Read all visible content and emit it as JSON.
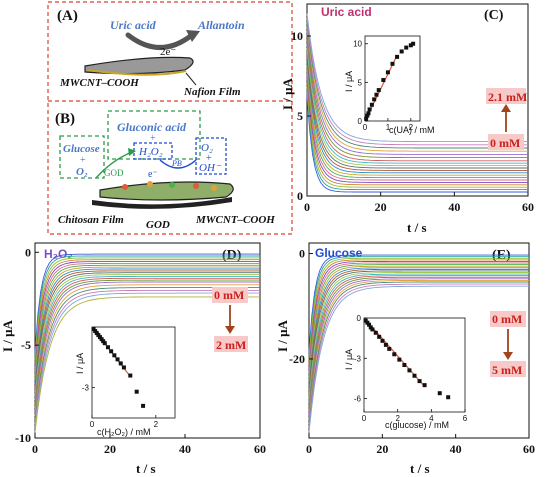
{
  "schematic": {
    "panel_a": {
      "label": "(A)",
      "uric_acid": "Uric acid",
      "allantoin": "Allantoin",
      "electrons": "2e⁻",
      "electrode": "MWCNT–COOH",
      "film": "Nafion Film"
    },
    "panel_b": {
      "label": "(B)",
      "gluconic_acid": "Gluconic acid",
      "plus": "+",
      "h2o2": "H₂O₂",
      "glucose": "Glucose",
      "o2": "O₂",
      "god_arrow": "GOD",
      "pb": "PB",
      "electron": "e⁻",
      "o2_right": "O₂",
      "oh": "OH⁻",
      "chitosan": "Chitosan Film",
      "god": "GOD",
      "electrode": "MWCNT–COOH"
    }
  },
  "chart_data": [
    {
      "panel": "(C)",
      "type": "line",
      "title": "Uric acid",
      "xlabel": "t / s",
      "ylabel": "I / μA",
      "xlim": [
        0,
        60
      ],
      "ylim": [
        0,
        12
      ],
      "xticks": [
        0,
        20,
        40,
        60
      ],
      "yticks": [
        0,
        5,
        10
      ],
      "steady_currents": [
        0.25,
        0.4,
        0.55,
        0.7,
        0.85,
        1.0,
        1.15,
        1.3,
        1.45,
        1.6,
        1.75,
        1.9,
        2.05,
        2.2,
        2.4,
        2.6,
        2.8,
        3.0,
        3.2,
        3.4
      ],
      "conc_low": "0 mM",
      "conc_high": "2.1 mM",
      "inset": {
        "type": "scatter",
        "xlabel": "c(UA) / mM",
        "ylabel": "I / μA",
        "xlim": [
          0,
          2.4
        ],
        "ylim": [
          0,
          11
        ],
        "xticks": [
          0,
          1,
          2
        ],
        "yticks": [
          0,
          5,
          10
        ],
        "x": [
          0.05,
          0.1,
          0.15,
          0.2,
          0.3,
          0.4,
          0.5,
          0.6,
          0.8,
          1.0,
          1.2,
          1.4,
          1.6,
          1.8,
          2.0,
          2.1
        ],
        "y": [
          0.3,
          0.7,
          1.0,
          1.5,
          2.1,
          2.8,
          3.4,
          4.0,
          5.3,
          6.3,
          7.4,
          8.3,
          9.0,
          9.5,
          9.8,
          10.0
        ],
        "fit": [
          [
            0,
            0
          ],
          [
            1.4,
            8.5
          ]
        ]
      }
    },
    {
      "panel": "(D)",
      "type": "line",
      "title": "H₂O₂",
      "xlabel": "t / s",
      "ylabel": "I / μA",
      "xlim": [
        0,
        60
      ],
      "ylim": [
        -10,
        0.5
      ],
      "xticks": [
        0,
        20,
        40,
        60
      ],
      "yticks": [
        0,
        -5,
        -10
      ],
      "steady_currents": [
        -0.1,
        -0.2,
        -0.3,
        -0.4,
        -0.5,
        -0.6,
        -0.7,
        -0.8,
        -0.9,
        -1.0,
        -1.1,
        -1.2,
        -1.3,
        -1.4,
        -1.5,
        -1.6,
        -1.75,
        -1.9,
        -2.05,
        -2.2,
        -2.4
      ],
      "conc_low": "0 mM",
      "conc_high": "2 mM",
      "inset": {
        "type": "scatter",
        "xlabel": "c(H₂O₂) / mM",
        "ylabel": "I / μA",
        "xlim": [
          0,
          2.6
        ],
        "ylim": [
          -4.5,
          0
        ],
        "xticks": [
          0,
          2
        ],
        "yticks": [
          -3
        ],
        "x": [
          0.05,
          0.1,
          0.15,
          0.2,
          0.25,
          0.3,
          0.35,
          0.4,
          0.5,
          0.6,
          0.7,
          0.8,
          0.9,
          1.0,
          1.2,
          1.4,
          1.6
        ],
        "y": [
          -0.1,
          -0.2,
          -0.3,
          -0.4,
          -0.5,
          -0.6,
          -0.7,
          -0.8,
          -1.0,
          -1.2,
          -1.4,
          -1.6,
          -1.8,
          -2.0,
          -2.4,
          -3.2,
          -3.9
        ],
        "fit": [
          [
            0,
            0
          ],
          [
            1.2,
            -2.45
          ]
        ]
      }
    },
    {
      "panel": "(E)",
      "type": "line",
      "title": "Glucose",
      "xlabel": "t / s",
      "ylabel": "I / μA",
      "xlim": [
        0,
        60
      ],
      "ylim": [
        -35,
        2
      ],
      "xticks": [
        0,
        20,
        40,
        60
      ],
      "yticks": [
        0,
        -20
      ],
      "steady_currents": [
        -0.3,
        -0.6,
        -0.9,
        -1.2,
        -1.5,
        -1.8,
        -2.1,
        -2.4,
        -2.7,
        -3.0,
        -3.3,
        -3.6,
        -3.9,
        -4.2,
        -4.5,
        -4.8,
        -5.1,
        -5.4,
        -5.8,
        -6.2
      ],
      "conc_low": "0 mM",
      "conc_high": "5 mM",
      "inset": {
        "type": "scatter",
        "xlabel": "c(glucose) / mM",
        "ylabel": "I / μA",
        "xlim": [
          0,
          6
        ],
        "ylim": [
          -7,
          0
        ],
        "xticks": [
          0,
          2,
          4,
          6
        ],
        "yticks": [
          -6,
          -3,
          0
        ],
        "x": [
          0.1,
          0.2,
          0.3,
          0.4,
          0.5,
          0.7,
          0.9,
          1.1,
          1.3,
          1.5,
          1.8,
          2.1,
          2.4,
          2.7,
          3.0,
          3.3,
          3.6,
          4.5,
          5.0
        ],
        "y": [
          -0.2,
          -0.35,
          -0.5,
          -0.7,
          -0.85,
          -1.1,
          -1.4,
          -1.7,
          -2.0,
          -2.3,
          -2.7,
          -3.1,
          -3.5,
          -3.9,
          -4.3,
          -4.7,
          -5.0,
          -5.6,
          -5.9
        ],
        "fit": [
          [
            0,
            0
          ],
          [
            3.6,
            -5.1
          ]
        ]
      }
    }
  ],
  "colors": {
    "dashed_frame": "#d9432c",
    "panel_title": "#c03070",
    "conc_text": "#c8201a",
    "conc_bg": "#f8c9c9",
    "conc_arrow": "#a0441c",
    "inset_points": "#111111",
    "fit_line": "#e05a3a",
    "species_blue": "#4a78c8",
    "green_box": "#2a9c48",
    "blue_box": "#1f4bd0",
    "palette": [
      "#3a5bd9",
      "#29a3a0",
      "#8fbf3a",
      "#d6852a",
      "#7a4fc0",
      "#e06a8a",
      "#50b050",
      "#c9a627",
      "#2b8fd6",
      "#b35a2f",
      "#5e6f7a",
      "#a1c94b",
      "#3fb6c9",
      "#d45e5e",
      "#6d9a2f",
      "#9c6ad6",
      "#e0a23a",
      "#4b8b72",
      "#c77dc0",
      "#7fa7d8",
      "#b0b030"
    ]
  }
}
